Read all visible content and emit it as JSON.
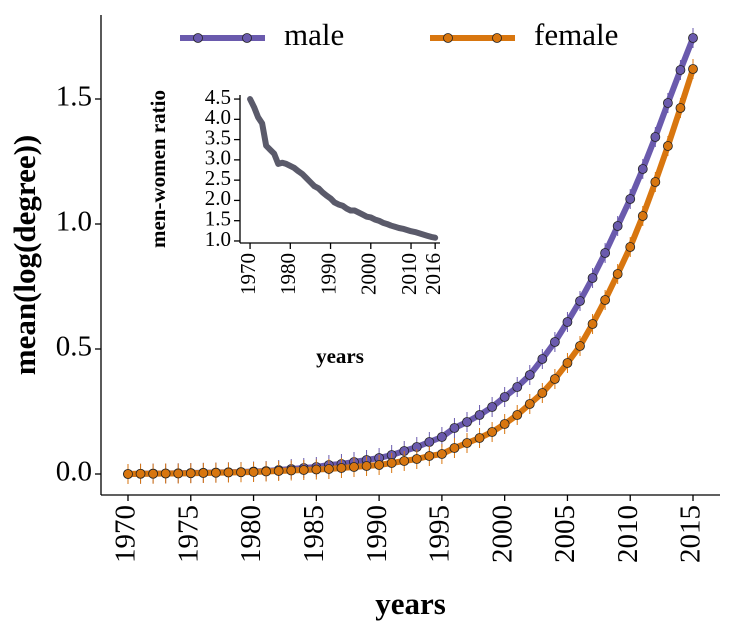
{
  "chart_data": [
    {
      "type": "line",
      "xlabel": "years",
      "ylabel": "mean(log(degree))",
      "legend": "upper center",
      "x": [
        1970,
        1971,
        1972,
        1973,
        1974,
        1975,
        1976,
        1977,
        1978,
        1979,
        1980,
        1981,
        1982,
        1983,
        1984,
        1985,
        1986,
        1987,
        1988,
        1989,
        1990,
        1991,
        1992,
        1993,
        1994,
        1995,
        1996,
        1997,
        1998,
        1999,
        2000,
        2001,
        2002,
        2003,
        2004,
        2005,
        2006,
        2007,
        2008,
        2009,
        2010,
        2011,
        2012,
        2013,
        2014,
        2015
      ],
      "series": [
        {
          "name": "male",
          "color": "#6a5aad",
          "values": [
            0,
            0.001,
            0.002,
            0.002,
            0.003,
            0.004,
            0.005,
            0.006,
            0.007,
            0.008,
            0.01,
            0.012,
            0.016,
            0.02,
            0.024,
            0.028,
            0.036,
            0.04,
            0.048,
            0.056,
            0.064,
            0.076,
            0.092,
            0.108,
            0.128,
            0.148,
            0.184,
            0.208,
            0.236,
            0.268,
            0.308,
            0.348,
            0.396,
            0.46,
            0.528,
            0.608,
            0.692,
            0.784,
            0.884,
            0.992,
            1.1,
            1.22,
            1.348,
            1.484,
            1.616,
            1.744
          ],
          "errors": [
            0.04,
            0.04,
            0.04,
            0.04,
            0.04,
            0.04,
            0.04,
            0.04,
            0.04,
            0.04,
            0.04,
            0.04,
            0.04,
            0.04,
            0.04,
            0.04,
            0.04,
            0.04,
            0.04,
            0.04,
            0.04,
            0.04,
            0.04,
            0.04,
            0.04,
            0.04,
            0.04,
            0.04,
            0.04,
            0.04,
            0.04,
            0.04,
            0.04,
            0.04,
            0.04,
            0.04,
            0.04,
            0.04,
            0.04,
            0.04,
            0.04,
            0.04,
            0.04,
            0.04,
            0.04,
            0.04
          ]
        },
        {
          "name": "female",
          "color": "#d8760f",
          "values": [
            0,
            0.001,
            0.001,
            0.002,
            0.002,
            0.003,
            0.004,
            0.005,
            0.006,
            0.007,
            0.008,
            0.01,
            0.012,
            0.014,
            0.016,
            0.018,
            0.02,
            0.024,
            0.028,
            0.032,
            0.036,
            0.044,
            0.052,
            0.06,
            0.072,
            0.08,
            0.104,
            0.124,
            0.144,
            0.168,
            0.2,
            0.236,
            0.28,
            0.324,
            0.38,
            0.444,
            0.512,
            0.6,
            0.696,
            0.8,
            0.908,
            1.032,
            1.168,
            1.312,
            1.464,
            1.62
          ],
          "errors": [
            0.04,
            0.04,
            0.04,
            0.04,
            0.04,
            0.04,
            0.04,
            0.04,
            0.04,
            0.04,
            0.04,
            0.04,
            0.04,
            0.04,
            0.04,
            0.04,
            0.04,
            0.04,
            0.04,
            0.04,
            0.04,
            0.04,
            0.04,
            0.04,
            0.04,
            0.04,
            0.04,
            0.04,
            0.04,
            0.04,
            0.04,
            0.04,
            0.04,
            0.04,
            0.04,
            0.04,
            0.04,
            0.04,
            0.04,
            0.04,
            0.04,
            0.04,
            0.04,
            0.04,
            0.04,
            0.04
          ]
        }
      ],
      "xlim": [
        1967.85,
        2017.15
      ],
      "ylim": [
        -0.084,
        1.836
      ],
      "xticks": [
        1970,
        1975,
        1980,
        1985,
        1990,
        1995,
        2000,
        2005,
        2010,
        2015
      ],
      "yticks": [
        {
          "value": 0,
          "label": "0.0"
        },
        0.5,
        {
          "value": 1,
          "label": "1.0"
        },
        1.5
      ]
    },
    {
      "type": "line",
      "xlabel": "years",
      "ylabel": "men-women ratio",
      "x": [
        1970,
        1971,
        1972,
        1973,
        1974,
        1975,
        1976,
        1977,
        1978,
        1979,
        1980,
        1981,
        1982,
        1983,
        1984,
        1985,
        1986,
        1987,
        1988,
        1989,
        1990,
        1991,
        1992,
        1993,
        1994,
        1995,
        1996,
        1997,
        1998,
        1999,
        2000,
        2001,
        2002,
        2003,
        2004,
        2005,
        2006,
        2007,
        2008,
        2009,
        2010,
        2011,
        2012,
        2013,
        2014,
        2015,
        2016
      ],
      "series": [
        {
          "color": "#5a5a6a",
          "values": [
            4.5,
            4.3,
            4.05,
            3.9,
            3.35,
            3.25,
            3.15,
            2.9,
            2.93,
            2.9,
            2.85,
            2.8,
            2.72,
            2.65,
            2.55,
            2.45,
            2.35,
            2.3,
            2.2,
            2.12,
            2.05,
            1.95,
            1.9,
            1.87,
            1.8,
            1.75,
            1.75,
            1.7,
            1.65,
            1.6,
            1.58,
            1.53,
            1.5,
            1.45,
            1.42,
            1.38,
            1.35,
            1.32,
            1.3,
            1.27,
            1.24,
            1.22,
            1.19,
            1.16,
            1.13,
            1.1,
            1.08
          ]
        }
      ],
      "xlim": [
        1967.5,
        2017.2
      ],
      "ylim": [
        0.95,
        4.6
      ],
      "xticks": [
        1970,
        1980,
        1990,
        2000,
        2010,
        2016
      ],
      "yticks": [
        {
          "value": 1,
          "label": "1.0"
        },
        1.5,
        {
          "value": 2,
          "label": "2.0"
        },
        2.5,
        {
          "value": 3,
          "label": "3.0"
        },
        3.5,
        {
          "value": 4,
          "label": "4.0"
        },
        4.5
      ]
    }
  ]
}
